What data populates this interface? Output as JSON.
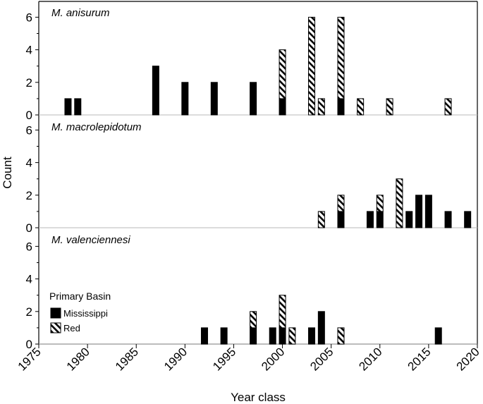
{
  "chart_data": {
    "type": "bar",
    "stacked": true,
    "ylabel": "Count",
    "xlabel": "Year class",
    "xlim": [
      1975,
      2020
    ],
    "xticks": [
      1975,
      1980,
      1985,
      1990,
      1995,
      2000,
      2005,
      2010,
      2015,
      2020
    ],
    "ylim": [
      0,
      7
    ],
    "yticks": [
      0,
      2,
      4,
      6
    ],
    "legend": {
      "title": "Primary Basin",
      "entries": [
        "Mississippi",
        "Red"
      ],
      "panel": 2,
      "position": "left-middle"
    },
    "series_styles": {
      "Mississippi": "solid-black",
      "Red": "black-white-hatch"
    },
    "panels": [
      {
        "title": "M. anisurum",
        "bars": [
          {
            "x": 1978,
            "mississippi": 1,
            "red": 0
          },
          {
            "x": 1979,
            "mississippi": 1,
            "red": 0
          },
          {
            "x": 1987,
            "mississippi": 3,
            "red": 0
          },
          {
            "x": 1990,
            "mississippi": 2,
            "red": 0
          },
          {
            "x": 1993,
            "mississippi": 2,
            "red": 0
          },
          {
            "x": 1997,
            "mississippi": 2,
            "red": 0
          },
          {
            "x": 2000,
            "mississippi": 1,
            "red": 3
          },
          {
            "x": 2003,
            "mississippi": 0,
            "red": 6
          },
          {
            "x": 2004,
            "mississippi": 0,
            "red": 1
          },
          {
            "x": 2006,
            "mississippi": 1,
            "red": 5
          },
          {
            "x": 2008,
            "mississippi": 0,
            "red": 1
          },
          {
            "x": 2011,
            "mississippi": 0,
            "red": 1
          },
          {
            "x": 2017,
            "mississippi": 0,
            "red": 1
          }
        ]
      },
      {
        "title": "M. macrolepidotum",
        "bars": [
          {
            "x": 2004,
            "mississippi": 0,
            "red": 1
          },
          {
            "x": 2006,
            "mississippi": 1,
            "red": 1
          },
          {
            "x": 2009,
            "mississippi": 1,
            "red": 0
          },
          {
            "x": 2010,
            "mississippi": 1,
            "red": 1
          },
          {
            "x": 2012,
            "mississippi": 0,
            "red": 3
          },
          {
            "x": 2013,
            "mississippi": 1,
            "red": 0
          },
          {
            "x": 2014,
            "mississippi": 2,
            "red": 0
          },
          {
            "x": 2015,
            "mississippi": 2,
            "red": 0
          },
          {
            "x": 2017,
            "mississippi": 1,
            "red": 0
          },
          {
            "x": 2019,
            "mississippi": 1,
            "red": 0
          }
        ]
      },
      {
        "title": "M. valenciennesi",
        "bars": [
          {
            "x": 1992,
            "mississippi": 1,
            "red": 0
          },
          {
            "x": 1994,
            "mississippi": 1,
            "red": 0
          },
          {
            "x": 1997,
            "mississippi": 1,
            "red": 1
          },
          {
            "x": 1999,
            "mississippi": 1,
            "red": 0
          },
          {
            "x": 2000,
            "mississippi": 1,
            "red": 2
          },
          {
            "x": 2001,
            "mississippi": 0,
            "red": 1
          },
          {
            "x": 2003,
            "mississippi": 1,
            "red": 0
          },
          {
            "x": 2004,
            "mississippi": 2,
            "red": 0
          },
          {
            "x": 2006,
            "mississippi": 0,
            "red": 1
          },
          {
            "x": 2016,
            "mississippi": 1,
            "red": 0
          }
        ]
      }
    ]
  }
}
